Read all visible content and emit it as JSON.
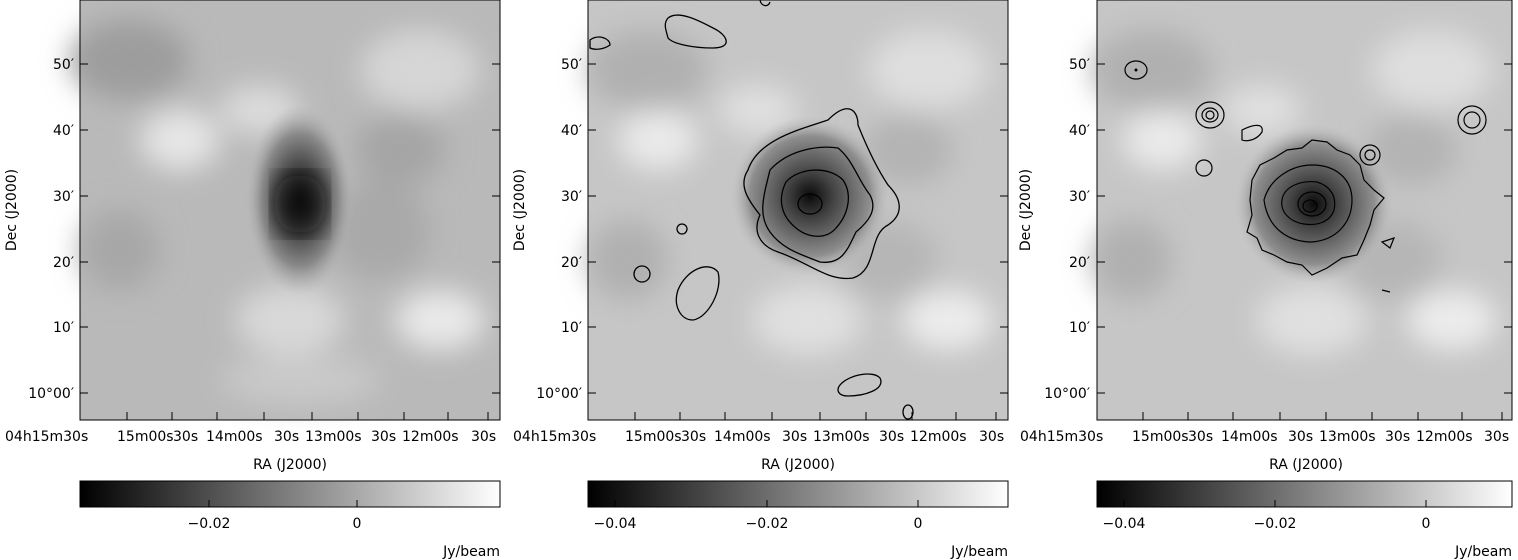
{
  "panels": [
    {
      "id": "left",
      "ra_label": "RA (J2000)",
      "dec_label": "Dec (J2000)",
      "dec_ticks": [
        "50′",
        "40′",
        "30′",
        "20′",
        "10′",
        "10°00′"
      ],
      "ra_ticks": [
        "04h15m30s",
        "15m00s",
        "30s",
        "14m00s",
        "30s",
        "13m00s",
        "30s",
        "12m00s",
        "30s"
      ],
      "colorbar_ticks": [
        "−0.02",
        "0"
      ],
      "colorbar_unit": "Jy/beam",
      "contours": false
    },
    {
      "id": "middle",
      "ra_label": "RA (J2000)",
      "dec_label": "Dec (J2000)",
      "dec_ticks": [
        "50′",
        "40′",
        "30′",
        "20′",
        "10′",
        "10°00′"
      ],
      "ra_ticks": [
        "04h15m30s",
        "15m00s",
        "30s",
        "14m00s",
        "30s",
        "13m00s",
        "30s",
        "12m00s",
        "30s"
      ],
      "colorbar_ticks": [
        "−0.04",
        "−0.02",
        "0"
      ],
      "colorbar_unit": "Jy/beam",
      "contours": true
    },
    {
      "id": "right",
      "ra_label": "RA (J2000)",
      "dec_label": "Dec (J2000)",
      "dec_ticks": [
        "50′",
        "40′",
        "30′",
        "20′",
        "10′",
        "10°00′"
      ],
      "ra_ticks": [
        "04h15m30s",
        "15m00s",
        "30s",
        "14m00s",
        "30s",
        "13m00s",
        "30s",
        "12m00s",
        "30s"
      ],
      "colorbar_ticks": [
        "−0.04",
        "−0.02",
        "0"
      ],
      "colorbar_unit": "Jy/beam",
      "contours": true
    }
  ]
}
